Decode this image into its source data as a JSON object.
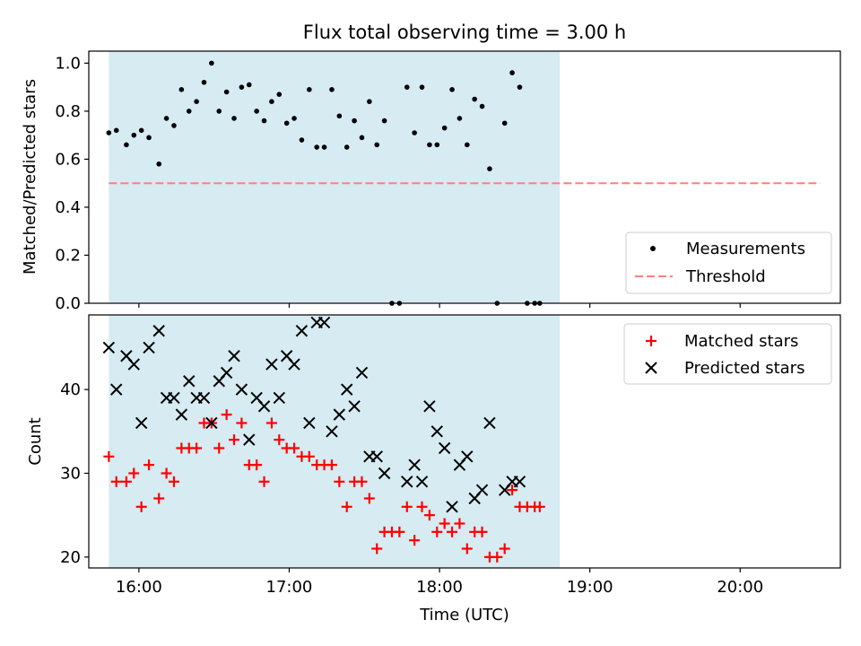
{
  "chart_data": [
    {
      "type": "scatter",
      "title": "Flux total observing time = 3.00 h",
      "xlabel": "",
      "ylabel": "Matched/Predicted stars",
      "ylim": [
        0.0,
        1.05
      ],
      "yticks": [
        "0.0",
        "0.2",
        "0.4",
        "0.6",
        "0.8",
        "1.0"
      ],
      "yticks_values": [
        0.0,
        0.2,
        0.4,
        0.6,
        0.8,
        1.0
      ],
      "x_unit": "minutes since 00:00 UTC",
      "xlim": [
        "15:40",
        "20:40"
      ],
      "shaded_region": {
        "from": "15:48",
        "to": "18:48",
        "color": "#add8e6"
      },
      "threshold": {
        "value": 0.5,
        "from": "15:48",
        "to": "20:32",
        "color": "#ff7f7f"
      },
      "legend_position": "lower right",
      "legend": [
        "Measurements",
        "Threshold"
      ],
      "series": [
        {
          "name": "Measurements",
          "color": "#000000",
          "marker": "dot",
          "points": [
            [
              "15:48",
              0.71
            ],
            [
              "15:51",
              0.72
            ],
            [
              "15:55",
              0.66
            ],
            [
              "15:58",
              0.7
            ],
            [
              "16:01",
              0.72
            ],
            [
              "16:04",
              0.69
            ],
            [
              "16:08",
              0.58
            ],
            [
              "16:11",
              0.77
            ],
            [
              "16:14",
              0.74
            ],
            [
              "16:17",
              0.89
            ],
            [
              "16:20",
              0.8
            ],
            [
              "16:23",
              0.84
            ],
            [
              "16:26",
              0.92
            ],
            [
              "16:29",
              1.0
            ],
            [
              "16:32",
              0.8
            ],
            [
              "16:35",
              0.88
            ],
            [
              "16:38",
              0.77
            ],
            [
              "16:41",
              0.9
            ],
            [
              "16:44",
              0.91
            ],
            [
              "16:47",
              0.8
            ],
            [
              "16:50",
              0.76
            ],
            [
              "16:53",
              0.84
            ],
            [
              "16:56",
              0.87
            ],
            [
              "16:59",
              0.75
            ],
            [
              "17:02",
              0.77
            ],
            [
              "17:05",
              0.68
            ],
            [
              "17:08",
              0.89
            ],
            [
              "17:11",
              0.65
            ],
            [
              "17:14",
              0.65
            ],
            [
              "17:17",
              0.89
            ],
            [
              "17:20",
              0.78
            ],
            [
              "17:23",
              0.65
            ],
            [
              "17:26",
              0.76
            ],
            [
              "17:29",
              0.69
            ],
            [
              "17:32",
              0.84
            ],
            [
              "17:35",
              0.66
            ],
            [
              "17:38",
              0.76
            ],
            [
              "17:41",
              0.0
            ],
            [
              "17:44",
              0.0
            ],
            [
              "17:47",
              0.9
            ],
            [
              "17:50",
              0.71
            ],
            [
              "17:53",
              0.9
            ],
            [
              "17:56",
              0.66
            ],
            [
              "17:59",
              0.66
            ],
            [
              "18:02",
              0.73
            ],
            [
              "18:05",
              0.89
            ],
            [
              "18:08",
              0.77
            ],
            [
              "18:11",
              0.66
            ],
            [
              "18:14",
              0.85
            ],
            [
              "18:17",
              0.82
            ],
            [
              "18:20",
              0.56
            ],
            [
              "18:23",
              0.0
            ],
            [
              "18:26",
              0.75
            ],
            [
              "18:29",
              0.96
            ],
            [
              "18:32",
              0.9
            ],
            [
              "18:35",
              0.0
            ],
            [
              "18:38",
              0.0
            ],
            [
              "18:40",
              0.0
            ]
          ]
        }
      ]
    },
    {
      "type": "scatter",
      "title": "",
      "xlabel": "Time (UTC)",
      "ylabel": "Count",
      "ylim": [
        18.7,
        48.9
      ],
      "yticks": [
        "20",
        "30",
        "40"
      ],
      "yticks_values": [
        20,
        30,
        40
      ],
      "x_unit": "minutes since 00:00 UTC",
      "xlim": [
        "15:40",
        "20:40"
      ],
      "xticks": [
        "16:00",
        "17:00",
        "18:00",
        "19:00",
        "20:00"
      ],
      "shaded_region": {
        "from": "15:48",
        "to": "18:48",
        "color": "#add8e6"
      },
      "legend_position": "upper right",
      "legend": [
        "Matched stars",
        "Predicted stars"
      ],
      "series": [
        {
          "name": "Matched stars",
          "color": "#ff0000",
          "marker": "plus",
          "points": [
            [
              "15:48",
              32
            ],
            [
              "15:51",
              29
            ],
            [
              "15:55",
              29
            ],
            [
              "15:58",
              30
            ],
            [
              "16:01",
              26
            ],
            [
              "16:04",
              31
            ],
            [
              "16:08",
              27
            ],
            [
              "16:11",
              30
            ],
            [
              "16:14",
              29
            ],
            [
              "16:17",
              33
            ],
            [
              "16:20",
              33
            ],
            [
              "16:23",
              33
            ],
            [
              "16:26",
              36
            ],
            [
              "16:29",
              36
            ],
            [
              "16:32",
              33
            ],
            [
              "16:35",
              37
            ],
            [
              "16:38",
              34
            ],
            [
              "16:41",
              36
            ],
            [
              "16:44",
              31
            ],
            [
              "16:47",
              31
            ],
            [
              "16:50",
              29
            ],
            [
              "16:53",
              36
            ],
            [
              "16:56",
              34
            ],
            [
              "16:59",
              33
            ],
            [
              "17:02",
              33
            ],
            [
              "17:05",
              32
            ],
            [
              "17:08",
              32
            ],
            [
              "17:11",
              31
            ],
            [
              "17:14",
              31
            ],
            [
              "17:17",
              31
            ],
            [
              "17:20",
              29
            ],
            [
              "17:23",
              26
            ],
            [
              "17:26",
              29
            ],
            [
              "17:29",
              29
            ],
            [
              "17:32",
              27
            ],
            [
              "17:35",
              21
            ],
            [
              "17:38",
              23
            ],
            [
              "17:41",
              23
            ],
            [
              "17:44",
              23
            ],
            [
              "17:47",
              26
            ],
            [
              "17:50",
              22
            ],
            [
              "17:53",
              26
            ],
            [
              "17:56",
              25
            ],
            [
              "17:59",
              23
            ],
            [
              "18:02",
              24
            ],
            [
              "18:05",
              23
            ],
            [
              "18:08",
              24
            ],
            [
              "18:11",
              21
            ],
            [
              "18:14",
              23
            ],
            [
              "18:17",
              23
            ],
            [
              "18:20",
              20
            ],
            [
              "18:23",
              20
            ],
            [
              "18:26",
              21
            ],
            [
              "18:29",
              28
            ],
            [
              "18:32",
              26
            ],
            [
              "18:35",
              26
            ],
            [
              "18:38",
              26
            ],
            [
              "18:40",
              26
            ]
          ]
        },
        {
          "name": "Predicted stars",
          "color": "#000000",
          "marker": "x",
          "points": [
            [
              "15:48",
              45
            ],
            [
              "15:51",
              40
            ],
            [
              "15:55",
              44
            ],
            [
              "15:58",
              43
            ],
            [
              "16:01",
              36
            ],
            [
              "16:04",
              45
            ],
            [
              "16:08",
              47
            ],
            [
              "16:11",
              39
            ],
            [
              "16:14",
              39
            ],
            [
              "16:17",
              37
            ],
            [
              "16:20",
              41
            ],
            [
              "16:23",
              39
            ],
            [
              "16:26",
              39
            ],
            [
              "16:29",
              36
            ],
            [
              "16:32",
              41
            ],
            [
              "16:35",
              42
            ],
            [
              "16:38",
              44
            ],
            [
              "16:41",
              40
            ],
            [
              "16:44",
              34
            ],
            [
              "16:47",
              39
            ],
            [
              "16:50",
              38
            ],
            [
              "16:53",
              43
            ],
            [
              "16:56",
              39
            ],
            [
              "16:59",
              44
            ],
            [
              "17:02",
              43
            ],
            [
              "17:05",
              47
            ],
            [
              "17:08",
              36
            ],
            [
              "17:11",
              48
            ],
            [
              "17:14",
              48
            ],
            [
              "17:17",
              35
            ],
            [
              "17:20",
              37
            ],
            [
              "17:23",
              40
            ],
            [
              "17:26",
              38
            ],
            [
              "17:29",
              42
            ],
            [
              "17:32",
              32
            ],
            [
              "17:35",
              32
            ],
            [
              "17:38",
              30
            ],
            [
              "17:47",
              29
            ],
            [
              "17:50",
              31
            ],
            [
              "17:53",
              29
            ],
            [
              "17:56",
              38
            ],
            [
              "17:59",
              35
            ],
            [
              "18:02",
              33
            ],
            [
              "18:05",
              26
            ],
            [
              "18:08",
              31
            ],
            [
              "18:11",
              32
            ],
            [
              "18:14",
              27
            ],
            [
              "18:17",
              28
            ],
            [
              "18:20",
              36
            ],
            [
              "18:26",
              28
            ],
            [
              "18:29",
              29
            ],
            [
              "18:32",
              29
            ]
          ]
        }
      ]
    }
  ]
}
